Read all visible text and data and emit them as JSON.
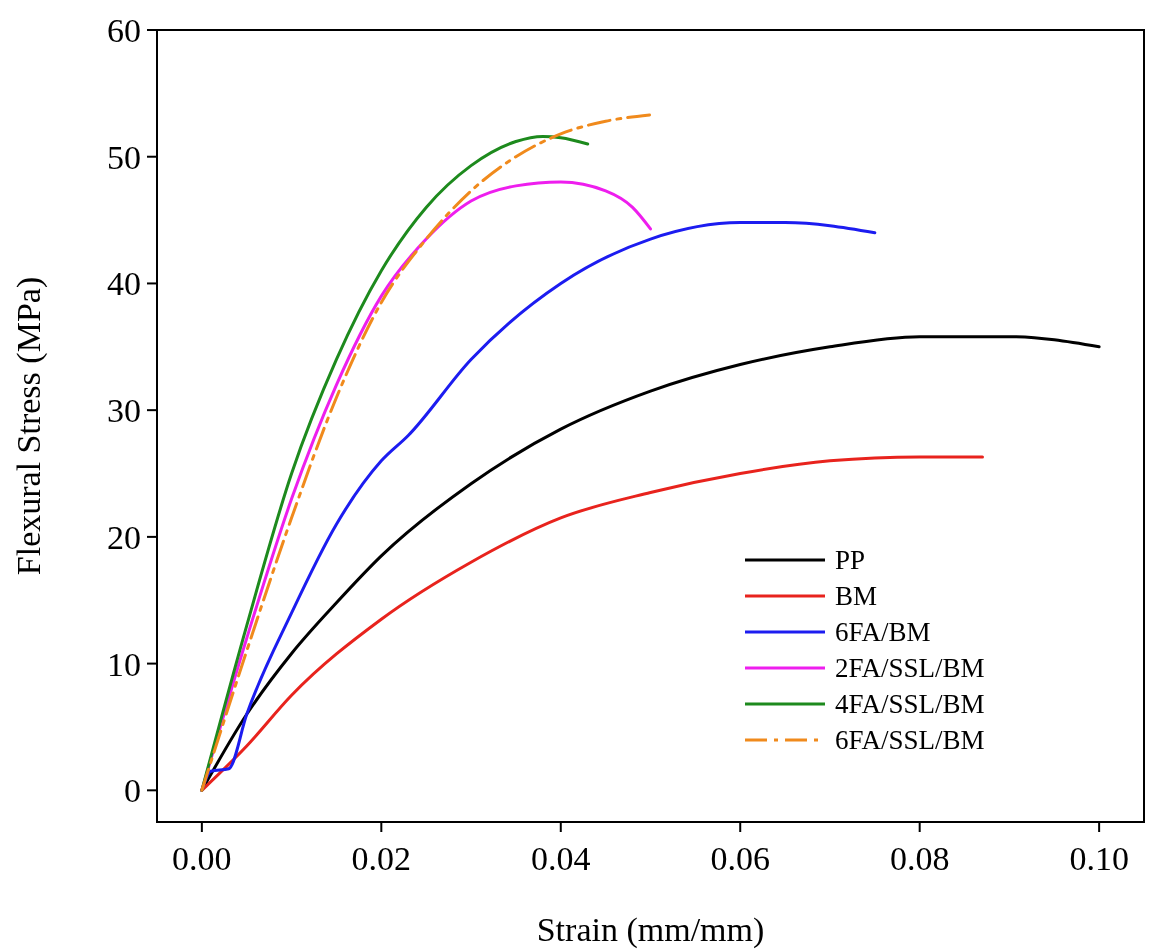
{
  "chart_data": {
    "type": "line",
    "xlabel": "Strain (mm/mm)",
    "ylabel": "Flexural Stress (MPa)",
    "xlim": [
      -0.005,
      0.105
    ],
    "ylim": [
      -2.5,
      60
    ],
    "xticks": [
      {
        "value": 0,
        "label": "0.00"
      },
      {
        "value": 0.02,
        "label": "0.02"
      },
      {
        "value": 0.04,
        "label": "0.04"
      },
      {
        "value": 0.06,
        "label": "0.06"
      },
      {
        "value": 0.08,
        "label": "0.08"
      },
      {
        "value": 0.1,
        "label": "0.10"
      }
    ],
    "yticks": [
      0,
      10,
      20,
      30,
      40,
      50,
      60
    ],
    "grid": false,
    "legend": "bottom right",
    "series": [
      {
        "name": "PP",
        "color": "#000000",
        "x": [
          0,
          0.005,
          0.01,
          0.015,
          0.02,
          0.03,
          0.04,
          0.05,
          0.06,
          0.07,
          0.08,
          0.09,
          0.1
        ],
        "values": [
          0,
          6,
          10.8,
          14.8,
          18.5,
          24.2,
          28.5,
          31.5,
          33.6,
          35,
          35.8,
          35.8,
          35
        ]
      },
      {
        "name": "BM",
        "color": "#e8231d",
        "x": [
          0,
          0.005,
          0.01,
          0.02,
          0.03,
          0.04,
          0.05,
          0.06,
          0.07,
          0.08,
          0.087
        ],
        "values": [
          0,
          3.5,
          7.5,
          13.5,
          18,
          21.5,
          23.5,
          25,
          26,
          26.3,
          26.3
        ]
      },
      {
        "name": "6FA/BM",
        "color": "#1c1cf0",
        "x": [
          0,
          0.001,
          0.003,
          0.005,
          0.01,
          0.015,
          0.02,
          0.023,
          0.03,
          0.04,
          0.05,
          0.06,
          0.065,
          0.075
        ],
        "values": [
          0,
          1.5,
          1.7,
          6,
          14,
          21,
          26,
          28,
          34,
          40,
          43.5,
          44.8,
          44.8,
          44
        ]
      },
      {
        "name": "2FA/SSL/BM",
        "color": "#ee1eee",
        "x": [
          0,
          0.005,
          0.01,
          0.015,
          0.02,
          0.025,
          0.03,
          0.035,
          0.04,
          0.045,
          0.048,
          0.05
        ],
        "values": [
          0,
          12,
          23,
          32,
          39,
          43.5,
          46.5,
          47.7,
          48,
          47.3,
          46,
          44.3
        ]
      },
      {
        "name": "4FA/SSL/BM",
        "color": "#1d8a1d",
        "x": [
          0,
          0.005,
          0.01,
          0.015,
          0.02,
          0.025,
          0.03,
          0.035,
          0.038,
          0.04,
          0.043
        ],
        "values": [
          0,
          13,
          25,
          34,
          41,
          46,
          49.3,
          51.2,
          51.6,
          51.5,
          51
        ]
      },
      {
        "name": "6FA/SSL/BM",
        "color": "#f08a1c",
        "line_style": "dashed",
        "x": [
          0,
          0.005,
          0.01,
          0.015,
          0.02,
          0.025,
          0.03,
          0.035,
          0.04,
          0.045,
          0.05
        ],
        "values": [
          0,
          11,
          21.5,
          31,
          38.5,
          43.5,
          47.3,
          50,
          51.8,
          52.8,
          53.3
        ]
      }
    ]
  }
}
